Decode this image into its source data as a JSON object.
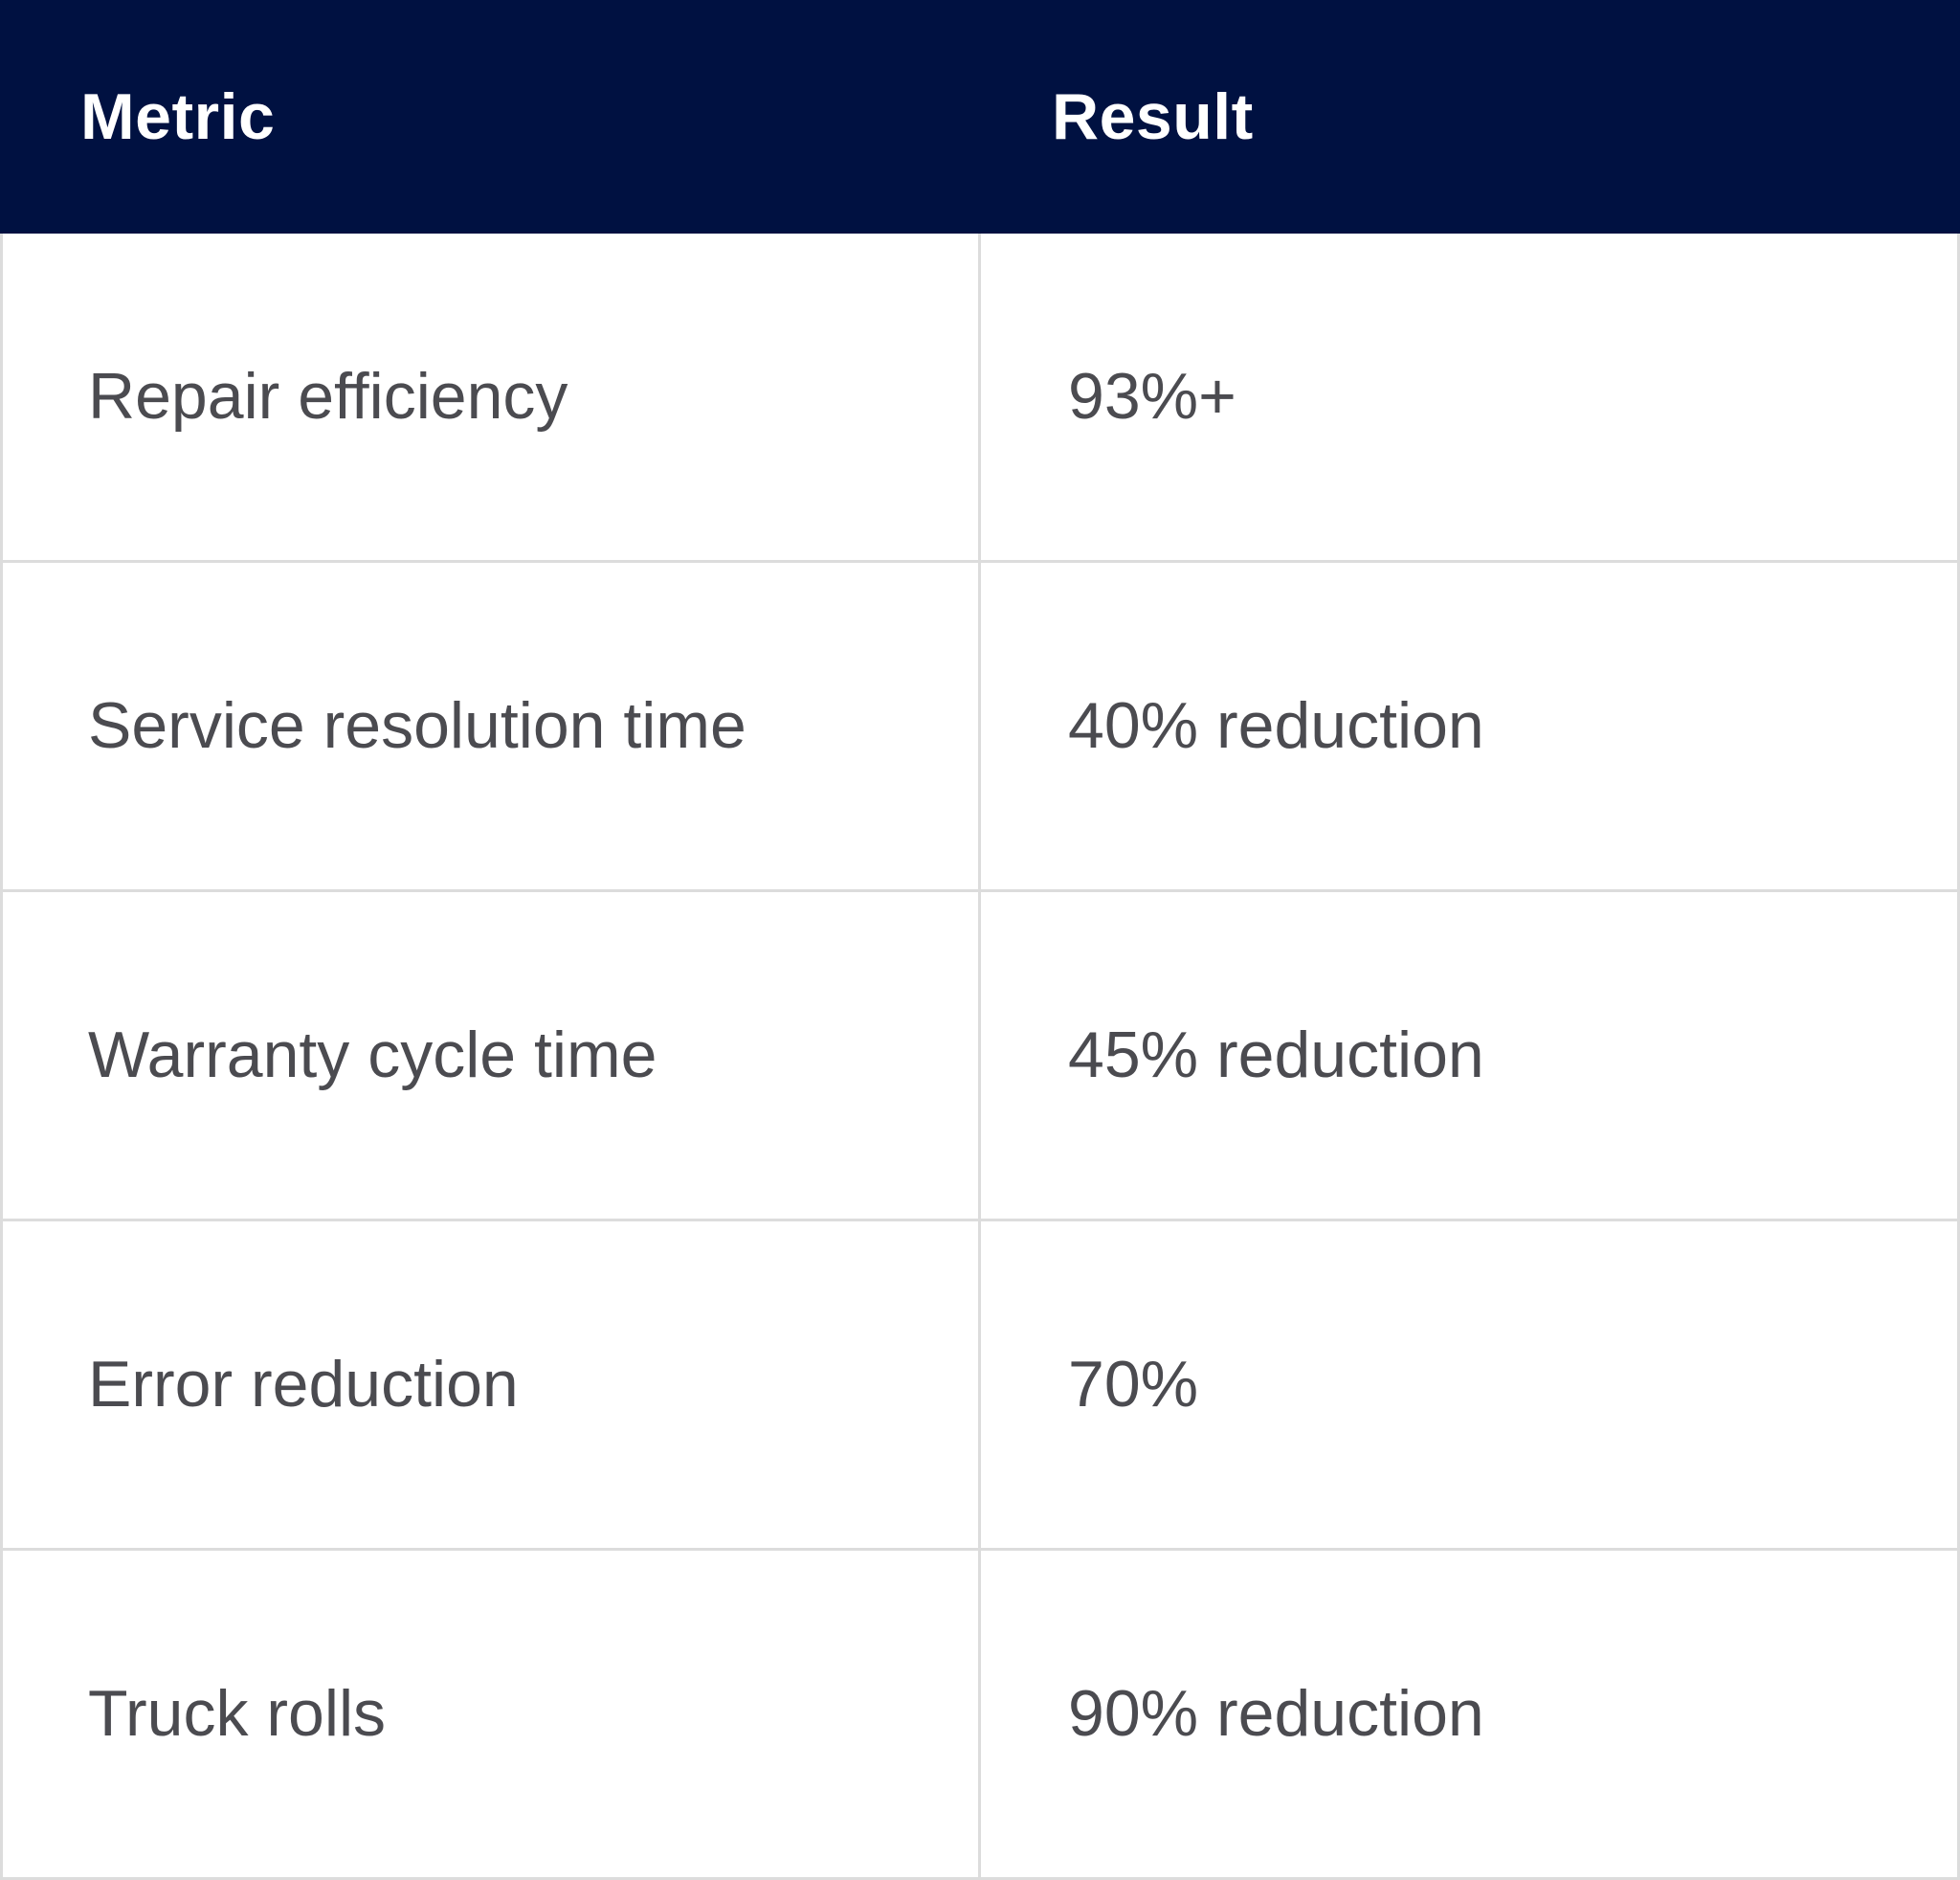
{
  "table": {
    "headers": {
      "metric": "Metric",
      "result": "Result"
    },
    "rows": [
      {
        "metric": "Repair efficiency",
        "result": "93%+"
      },
      {
        "metric": "Service resolution time",
        "result": "40% reduction"
      },
      {
        "metric": "Warranty cycle time",
        "result": "45% reduction"
      },
      {
        "metric": "Error reduction",
        "result": "70%"
      },
      {
        "metric": "Truck rolls",
        "result": "90% reduction"
      }
    ]
  },
  "colors": {
    "header_background": "#001141",
    "header_text": "#ffffff",
    "body_text": "#4b4b50",
    "grid_line": "#dcdcdc"
  }
}
